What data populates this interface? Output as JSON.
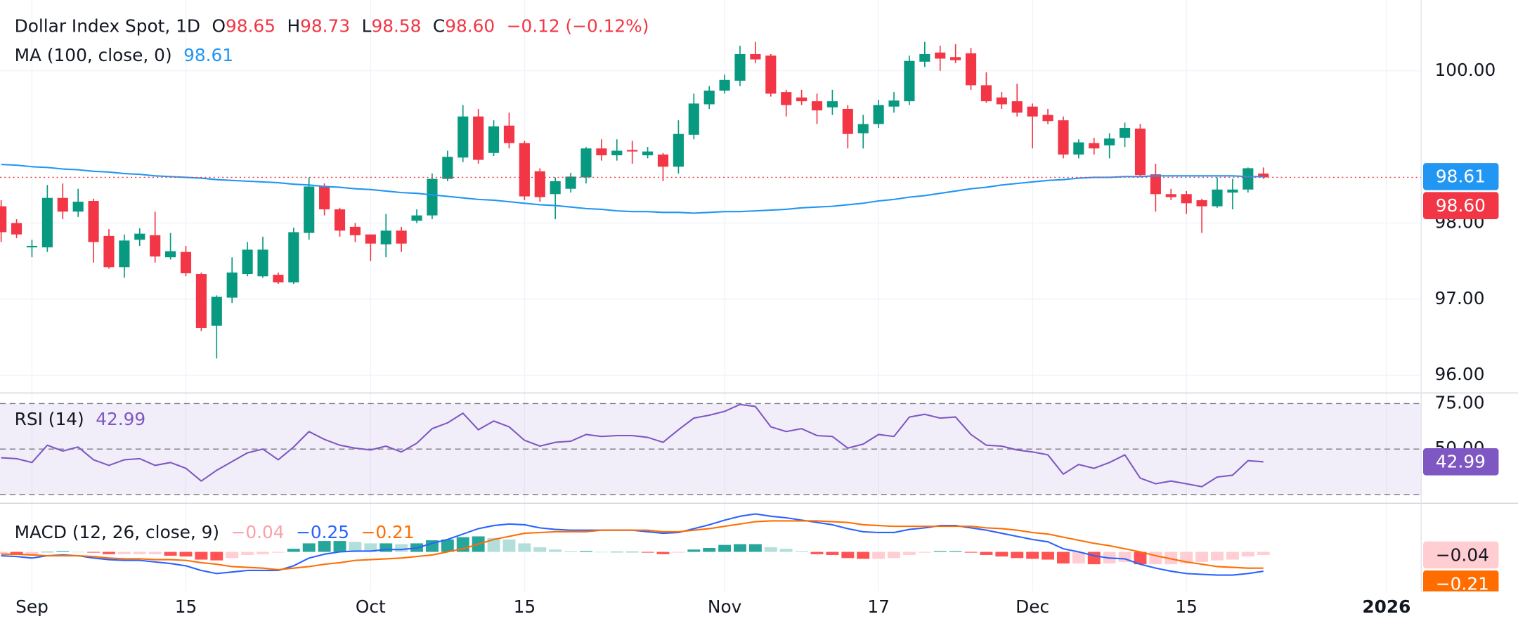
{
  "chart_data": [
    {
      "type": "candlestick",
      "title": "Dollar Index Spot, 1D",
      "ohlc_legend": [
        {
          "label": "O",
          "value": "98.65"
        },
        {
          "label": "H",
          "value": "98.73"
        },
        {
          "label": "L",
          "value": "98.58"
        },
        {
          "label": "C",
          "value": "98.60"
        }
      ],
      "change": "−0.12 (−0.12%)",
      "up_color": "#089981",
      "down_color": "#f23645",
      "categories": [
        null,
        null,
        "Sep",
        null,
        null,
        null,
        null,
        null,
        null,
        null,
        null,
        null,
        "15",
        null,
        null,
        null,
        null,
        null,
        null,
        null,
        null,
        null,
        null,
        null,
        "Oct",
        null,
        null,
        null,
        null,
        null,
        null,
        null,
        null,
        null,
        "15",
        null,
        null,
        null,
        null,
        null,
        null,
        null,
        null,
        null,
        null,
        null,
        null,
        "Nov",
        null,
        null,
        null,
        null,
        null,
        null,
        null,
        null,
        null,
        "17",
        null,
        null,
        null,
        null,
        null,
        null,
        null,
        null,
        null,
        "Dec",
        null,
        null,
        null,
        null,
        null,
        null,
        null,
        null,
        null,
        "15",
        null,
        null,
        null,
        null,
        null,
        null,
        null,
        null,
        null,
        null,
        null,
        null,
        "2026",
        null,
        null
      ],
      "open": [
        98.22,
        98.0,
        97.68,
        97.68,
        98.33,
        98.15,
        98.29,
        97.83,
        97.42,
        97.78,
        97.84,
        97.55,
        97.62,
        97.33,
        96.65,
        97.02,
        97.33,
        97.3,
        97.32,
        97.22,
        97.87,
        98.48,
        98.18,
        97.95,
        97.85,
        97.72,
        97.9,
        98.03,
        98.1,
        98.58,
        98.86,
        99.4,
        98.92,
        99.28,
        99.05,
        98.68,
        98.38,
        98.45,
        98.6,
        98.98,
        98.89,
        98.96,
        98.89,
        98.9,
        98.74,
        99.16,
        99.56,
        99.74,
        99.87,
        100.22,
        100.2,
        99.72,
        99.65,
        99.6,
        99.52,
        99.5,
        99.18,
        99.3,
        99.53,
        99.6,
        100.12,
        100.24,
        100.18,
        100.23,
        99.81,
        99.65,
        99.6,
        99.53,
        99.42,
        99.35,
        98.9,
        99.05,
        99.02,
        99.12,
        99.24,
        98.64,
        98.38,
        98.38,
        98.3,
        98.22,
        98.4,
        98.44,
        98.65,
        null,
        null,
        null,
        null,
        null,
        null,
        null,
        null,
        null,
        null
      ],
      "high": [
        98.3,
        98.05,
        97.78,
        98.5,
        98.52,
        98.45,
        98.32,
        97.92,
        97.85,
        97.93,
        98.15,
        97.87,
        97.7,
        97.35,
        97.05,
        97.55,
        97.75,
        97.82,
        97.35,
        97.94,
        98.6,
        98.52,
        98.2,
        98.0,
        97.85,
        98.12,
        97.95,
        98.18,
        98.65,
        98.95,
        99.55,
        99.5,
        99.35,
        99.45,
        99.08,
        98.72,
        98.6,
        98.66,
        99.0,
        99.1,
        99.1,
        99.08,
        99.0,
        98.92,
        99.35,
        99.7,
        99.8,
        99.95,
        100.33,
        100.38,
        100.22,
        99.75,
        99.75,
        99.7,
        99.75,
        99.55,
        99.42,
        99.62,
        99.72,
        100.2,
        100.38,
        100.33,
        100.35,
        100.3,
        99.98,
        99.72,
        99.83,
        99.57,
        99.5,
        99.4,
        99.1,
        99.12,
        99.18,
        99.32,
        99.3,
        98.78,
        98.45,
        98.42,
        98.32,
        98.6,
        98.58,
        98.73,
        98.73,
        null,
        null,
        null,
        null,
        null,
        null,
        null,
        null,
        null,
        null
      ],
      "low": [
        97.75,
        97.8,
        97.55,
        97.62,
        98.05,
        98.08,
        97.48,
        97.4,
        97.28,
        97.7,
        97.48,
        97.52,
        97.3,
        96.58,
        96.22,
        96.95,
        97.3,
        97.28,
        97.2,
        97.2,
        97.78,
        98.1,
        97.82,
        97.75,
        97.5,
        97.55,
        97.62,
        98.0,
        98.05,
        98.55,
        98.8,
        98.78,
        98.88,
        98.98,
        98.3,
        98.28,
        98.05,
        98.4,
        98.52,
        98.82,
        98.82,
        98.78,
        98.85,
        98.55,
        98.65,
        99.1,
        99.5,
        99.7,
        99.8,
        100.1,
        99.66,
        99.4,
        99.55,
        99.3,
        99.42,
        98.98,
        98.98,
        99.25,
        99.45,
        99.55,
        100.05,
        100.0,
        100.1,
        99.75,
        99.58,
        99.5,
        99.4,
        98.98,
        99.3,
        98.85,
        98.85,
        98.9,
        98.85,
        99.0,
        98.6,
        98.15,
        98.3,
        98.12,
        97.87,
        98.2,
        98.18,
        98.4,
        98.58,
        null,
        null,
        null,
        null,
        null,
        null,
        null,
        null,
        null,
        null
      ],
      "close": [
        97.88,
        97.85,
        97.7,
        98.33,
        98.15,
        98.28,
        97.75,
        97.42,
        97.77,
        97.86,
        97.56,
        97.63,
        97.34,
        96.62,
        97.03,
        97.35,
        97.65,
        97.65,
        97.22,
        97.88,
        98.48,
        98.18,
        97.9,
        97.84,
        97.73,
        97.9,
        97.73,
        98.1,
        98.58,
        98.87,
        99.4,
        98.83,
        99.27,
        99.05,
        98.35,
        98.34,
        98.55,
        98.61,
        98.98,
        98.89,
        98.95,
        98.94,
        98.94,
        98.74,
        99.17,
        99.57,
        99.74,
        99.88,
        100.22,
        100.15,
        99.7,
        99.55,
        99.6,
        99.48,
        99.6,
        99.17,
        99.3,
        99.55,
        99.61,
        100.13,
        100.22,
        100.16,
        100.14,
        99.81,
        99.6,
        99.56,
        99.45,
        99.4,
        99.34,
        98.9,
        99.06,
        98.98,
        99.11,
        99.25,
        98.63,
        98.38,
        98.34,
        98.26,
        98.22,
        98.44,
        98.44,
        98.72,
        98.6,
        null,
        null,
        null,
        null,
        null,
        null,
        null,
        null,
        null,
        null
      ],
      "series": [
        {
          "name": "MA (100, close, 0)",
          "color": "#2196f3",
          "legend_value": "98.61",
          "values": [
            98.77,
            98.76,
            98.74,
            98.73,
            98.71,
            98.7,
            98.68,
            98.67,
            98.65,
            98.64,
            98.62,
            98.61,
            98.6,
            98.59,
            98.57,
            98.56,
            98.55,
            98.54,
            98.53,
            98.51,
            98.5,
            98.48,
            98.47,
            98.45,
            98.44,
            98.42,
            98.4,
            98.39,
            98.37,
            98.35,
            98.33,
            98.31,
            98.3,
            98.28,
            98.26,
            98.24,
            98.23,
            98.21,
            98.19,
            98.18,
            98.16,
            98.15,
            98.15,
            98.14,
            98.14,
            98.13,
            98.14,
            98.15,
            98.15,
            98.16,
            98.17,
            98.18,
            98.2,
            98.21,
            98.22,
            98.24,
            98.26,
            98.29,
            98.31,
            98.34,
            98.36,
            98.39,
            98.42,
            98.45,
            98.47,
            98.5,
            98.52,
            98.54,
            98.56,
            98.57,
            98.59,
            98.6,
            98.6,
            98.61,
            98.61,
            98.62,
            98.62,
            98.62,
            98.62,
            98.62,
            98.62,
            98.61,
            98.61,
            null,
            null,
            null,
            null,
            null,
            null,
            null,
            null,
            null,
            null
          ]
        }
      ],
      "ylim": [
        95.78,
        100.93
      ],
      "yticks": [
        {
          "value": 96,
          "label": "96.00"
        },
        {
          "value": 97,
          "label": "97.00"
        },
        {
          "value": 98,
          "label": "98.00"
        },
        {
          "value": 100,
          "label": "100.00"
        }
      ],
      "grid": true,
      "ma_last": {
        "value": 98.61,
        "label": "98.61"
      },
      "last_price": {
        "value": 98.6,
        "label": "98.60"
      }
    },
    {
      "type": "line",
      "title": "RSI (14)",
      "legend_value": "42.99",
      "color": "#7e57c2",
      "values": [
        45.2,
        44.7,
        42.6,
        52.1,
        48.9,
        51.1,
        44.1,
        41.0,
        44.1,
        44.7,
        41.0,
        42.6,
        39.4,
        32.4,
        38.3,
        43.1,
        47.9,
        50.0,
        44.1,
        51.1,
        59.6,
        55.3,
        52.1,
        50.5,
        49.5,
        51.6,
        48.4,
        53.2,
        61.2,
        64.4,
        69.7,
        60.6,
        65.4,
        62.2,
        54.8,
        51.6,
        53.7,
        54.3,
        58.0,
        56.9,
        57.4,
        57.4,
        56.4,
        53.7,
        60.6,
        67.0,
        68.6,
        70.7,
        74.5,
        73.4,
        62.2,
        59.6,
        61.2,
        57.4,
        56.9,
        50.5,
        52.7,
        58.0,
        56.9,
        67.6,
        69.1,
        67.0,
        67.6,
        58.0,
        52.1,
        51.6,
        49.5,
        48.4,
        46.8,
        36.2,
        41.5,
        39.4,
        42.6,
        46.8,
        34.0,
        30.9,
        32.4,
        30.9,
        29.3,
        34.6,
        35.6,
        43.6,
        42.99,
        null,
        null,
        null,
        null,
        null,
        null,
        null,
        null,
        null,
        null
      ],
      "ylim": [
        20.7,
        80.3
      ],
      "yticks": [
        {
          "value": 50,
          "label": "50.00"
        },
        {
          "value": 75,
          "label": "75.00"
        }
      ],
      "levels": [
        25,
        50,
        75
      ],
      "band": [
        25,
        75
      ],
      "last_label": {
        "value": 42.99,
        "label": "42.99"
      }
    },
    {
      "type": "macd",
      "title": "MACD (12, 26, close, 9)",
      "histogram": {
        "legend_value": "−0.04",
        "colors": {
          "positive_rising": "#26a69a",
          "positive_falling": "#b2dfdb",
          "negative_falling": "#ff5252",
          "negative_rising": "#ffcdd2"
        },
        "values": [
          -0.03,
          -0.04,
          -0.04,
          0,
          0.01,
          0,
          -0.01,
          -0.03,
          -0.03,
          -0.03,
          -0.03,
          -0.05,
          -0.06,
          -0.1,
          -0.11,
          -0.08,
          -0.04,
          -0.03,
          -0.01,
          0.04,
          0.11,
          0.14,
          0.14,
          0.13,
          0.11,
          0.11,
          0.1,
          0.11,
          0.15,
          0.16,
          0.19,
          0.2,
          0.18,
          0.16,
          0.11,
          0.06,
          0.03,
          0.01,
          0.01,
          0,
          0,
          0,
          -0.01,
          -0.03,
          -0.01,
          0.03,
          0.05,
          0.09,
          0.1,
          0.1,
          0.06,
          0.04,
          0.01,
          -0.03,
          -0.04,
          -0.08,
          -0.09,
          -0.09,
          -0.08,
          -0.04,
          -0.01,
          0.01,
          0.01,
          -0.01,
          -0.04,
          -0.06,
          -0.08,
          -0.09,
          -0.1,
          -0.15,
          -0.15,
          -0.16,
          -0.15,
          -0.13,
          -0.16,
          -0.16,
          -0.16,
          -0.15,
          -0.13,
          -0.11,
          -0.1,
          -0.06,
          -0.04,
          null,
          null,
          null,
          null,
          null,
          null,
          null,
          null,
          null,
          null
        ]
      },
      "macd": {
        "color": "#2962ff",
        "legend_value": "−0.25",
        "values": [
          -0.05,
          -0.06,
          -0.08,
          -0.05,
          -0.04,
          -0.05,
          -0.08,
          -0.1,
          -0.11,
          -0.11,
          -0.13,
          -0.15,
          -0.18,
          -0.24,
          -0.28,
          -0.26,
          -0.24,
          -0.24,
          -0.24,
          -0.18,
          -0.08,
          -0.03,
          0,
          0.01,
          0.01,
          0.03,
          0.03,
          0.05,
          0.11,
          0.16,
          0.23,
          0.3,
          0.34,
          0.36,
          0.35,
          0.31,
          0.29,
          0.28,
          0.28,
          0.28,
          0.28,
          0.28,
          0.26,
          0.24,
          0.25,
          0.3,
          0.35,
          0.41,
          0.46,
          0.49,
          0.46,
          0.44,
          0.41,
          0.38,
          0.35,
          0.3,
          0.26,
          0.25,
          0.25,
          0.29,
          0.31,
          0.34,
          0.34,
          0.31,
          0.28,
          0.24,
          0.2,
          0.16,
          0.13,
          0.04,
          0,
          -0.05,
          -0.08,
          -0.09,
          -0.16,
          -0.21,
          -0.25,
          -0.28,
          -0.29,
          -0.3,
          -0.3,
          -0.28,
          -0.25,
          null,
          null,
          null,
          null,
          null,
          null,
          null,
          null,
          null,
          null
        ]
      },
      "signal": {
        "color": "#ff6d00",
        "legend_value": "−0.21",
        "values": [
          -0.03,
          -0.03,
          -0.04,
          -0.05,
          -0.05,
          -0.05,
          -0.06,
          -0.08,
          -0.09,
          -0.09,
          -0.1,
          -0.1,
          -0.11,
          -0.14,
          -0.16,
          -0.19,
          -0.2,
          -0.21,
          -0.23,
          -0.21,
          -0.19,
          -0.16,
          -0.14,
          -0.11,
          -0.1,
          -0.09,
          -0.08,
          -0.06,
          -0.04,
          0,
          0.04,
          0.1,
          0.16,
          0.2,
          0.24,
          0.25,
          0.26,
          0.26,
          0.26,
          0.28,
          0.28,
          0.28,
          0.28,
          0.26,
          0.26,
          0.28,
          0.3,
          0.33,
          0.36,
          0.39,
          0.4,
          0.4,
          0.4,
          0.4,
          0.39,
          0.38,
          0.35,
          0.34,
          0.33,
          0.33,
          0.33,
          0.33,
          0.33,
          0.33,
          0.31,
          0.3,
          0.28,
          0.25,
          0.23,
          0.19,
          0.15,
          0.11,
          0.08,
          0.04,
          0,
          -0.05,
          -0.09,
          -0.13,
          -0.16,
          -0.19,
          -0.2,
          -0.21,
          -0.21,
          null,
          null,
          null,
          null,
          null,
          null,
          null,
          null,
          null,
          null
        ]
      },
      "ylim": [
        -0.51,
        0.615
      ],
      "histogram_last": {
        "value": -0.04,
        "label": "−0.04"
      },
      "signal_last": {
        "value": -0.21,
        "label": "−0.21"
      }
    }
  ]
}
